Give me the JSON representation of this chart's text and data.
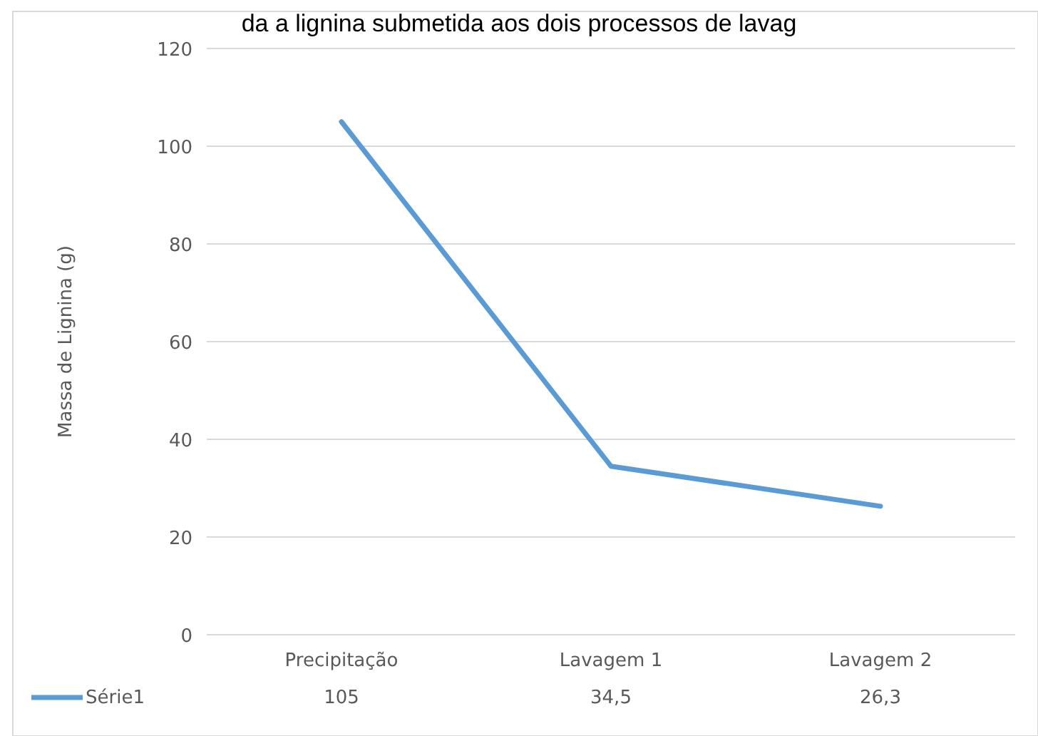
{
  "chart_data": {
    "type": "line",
    "title": "da a lignina submetida aos dois processos de lavag",
    "ylabel": "Massa de Lignina (g)",
    "categories": [
      "Precipitação",
      "Lavagem 1",
      "Lavagem 2"
    ],
    "series": [
      {
        "name": "Série1",
        "color": "#5b9bd5",
        "values": [
          105,
          34.5,
          26.3
        ],
        "value_labels": [
          "105",
          "34,5",
          "26,3"
        ]
      }
    ],
    "ylim": [
      0,
      120
    ],
    "yticks": [
      0,
      20,
      40,
      60,
      80,
      100,
      120
    ],
    "grid": "y",
    "legend": "bottom",
    "data_labels": true,
    "marker": "none",
    "line_style": "solid"
  }
}
